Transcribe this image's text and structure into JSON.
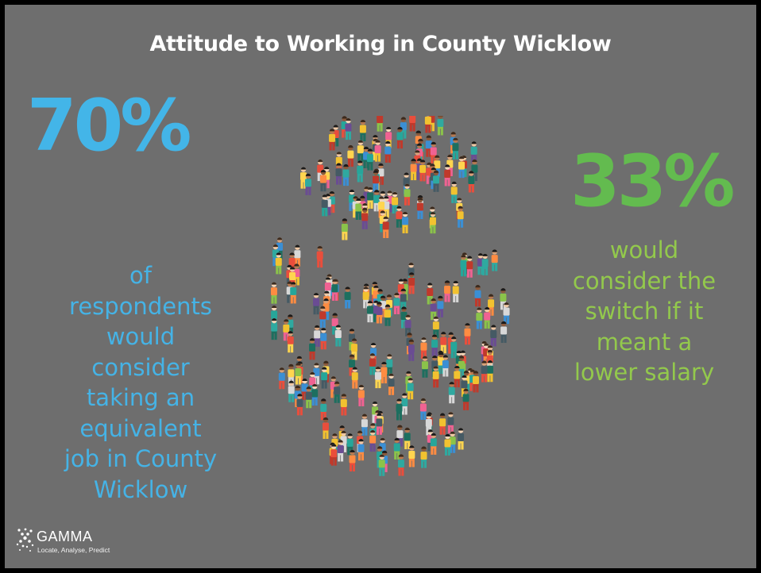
{
  "slide": {
    "title": "Attitude to Working in County Wicklow",
    "left_stat": {
      "value": "70%",
      "description": "of respondents would consider taking an equivalent job in County Wicklow",
      "lines": [
        "of",
        "respondents",
        "would",
        "consider",
        "taking an",
        "equivalent",
        "job in County",
        "Wicklow"
      ],
      "color": "#43b5e8"
    },
    "right_stat": {
      "value": "33%",
      "description": "would consider the switch if it meant a lower salary",
      "lines": [
        "would",
        "consider the",
        "switch if it",
        "meant a",
        "lower salary"
      ],
      "color": "#63bb4f",
      "text_color": "#93c94c"
    },
    "illustration": {
      "icon": "crowd-of-people-icon",
      "shape": "euro-symbol-formed-by-crowd"
    },
    "colors": {
      "background": "#6e6e6e",
      "frame": "#000000",
      "title": "#ffffff"
    },
    "logo": {
      "name": "GAMMA",
      "tagline": "Locate, Analyse, Predict"
    }
  }
}
